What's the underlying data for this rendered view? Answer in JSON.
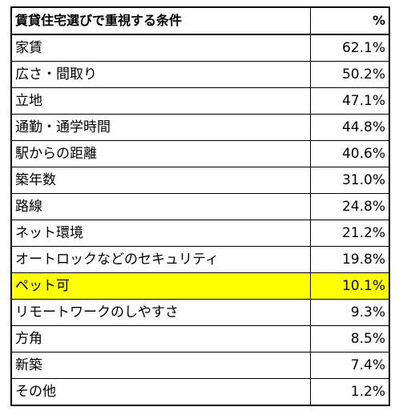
{
  "table": {
    "header": {
      "label": "賃貸住宅選びで重視する条件",
      "value": "%"
    },
    "highlight_color": "#ffff00",
    "rows": [
      {
        "label": "家賃",
        "value": "62.1%",
        "highlighted": false
      },
      {
        "label": "広さ・間取り",
        "value": "50.2%",
        "highlighted": false
      },
      {
        "label": "立地",
        "value": "47.1%",
        "highlighted": false
      },
      {
        "label": "通勤・通学時間",
        "value": "44.8%",
        "highlighted": false
      },
      {
        "label": "駅からの距離",
        "value": "40.6%",
        "highlighted": false
      },
      {
        "label": "築年数",
        "value": "31.0%",
        "highlighted": false
      },
      {
        "label": "路線",
        "value": "24.8%",
        "highlighted": false
      },
      {
        "label": "ネット環境",
        "value": "21.2%",
        "highlighted": false
      },
      {
        "label": "オートロックなどのセキュリティ",
        "value": "19.8%",
        "highlighted": false
      },
      {
        "label": "ペット可",
        "value": "10.1%",
        "highlighted": true
      },
      {
        "label": "リモートワークのしやすさ",
        "value": "9.3%",
        "highlighted": false
      },
      {
        "label": "方角",
        "value": "8.5%",
        "highlighted": false
      },
      {
        "label": "新築",
        "value": "7.4%",
        "highlighted": false
      },
      {
        "label": "その他",
        "value": "1.2%",
        "highlighted": false
      }
    ]
  }
}
